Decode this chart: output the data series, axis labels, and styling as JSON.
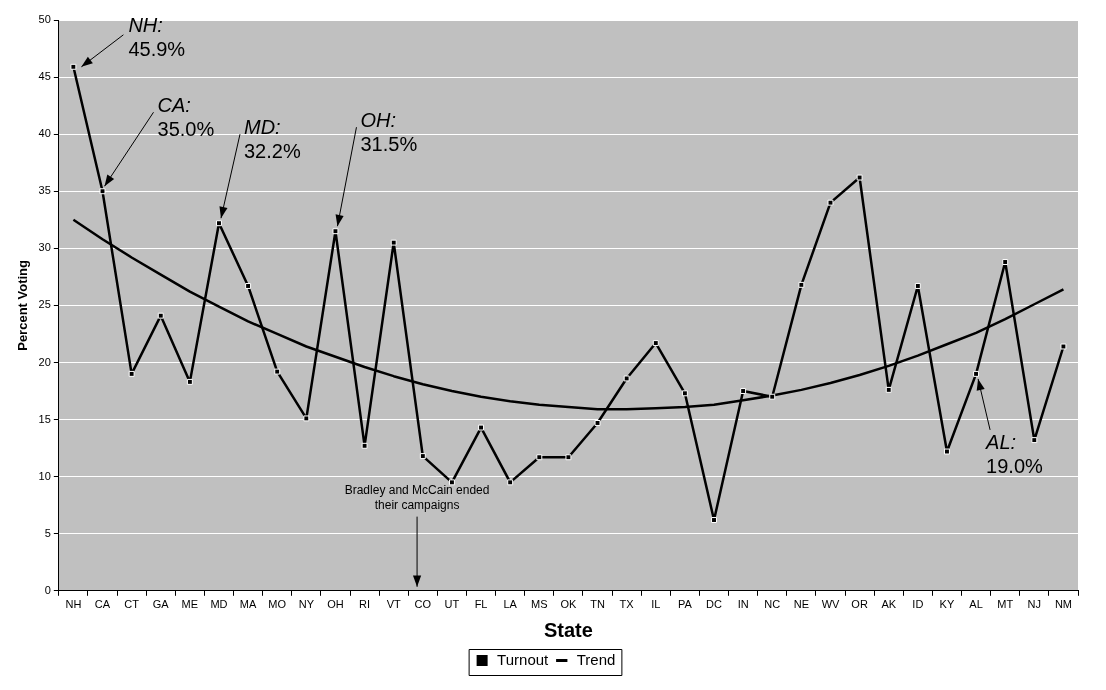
{
  "chart_data": {
    "type": "line",
    "xlabel": "State",
    "ylabel": "Percent Voting",
    "categories": [
      "NH",
      "CA",
      "CT",
      "GA",
      "ME",
      "MD",
      "MA",
      "MO",
      "NY",
      "OH",
      "RI",
      "VT",
      "CO",
      "UT",
      "FL",
      "LA",
      "MS",
      "OK",
      "TN",
      "TX",
      "IL",
      "PA",
      "DC",
      "IN",
      "NC",
      "NE",
      "WV",
      "OR",
      "AK",
      "ID",
      "KY",
      "AL",
      "MT",
      "NJ",
      "NM"
    ],
    "series": [
      {
        "name": "Turnout",
        "color": "#000000",
        "marker": "square",
        "values": [
          45.9,
          35.0,
          19.0,
          24.1,
          18.3,
          32.2,
          26.7,
          19.2,
          15.1,
          31.5,
          12.7,
          30.5,
          11.8,
          9.5,
          14.3,
          9.5,
          11.7,
          11.7,
          14.7,
          18.6,
          21.7,
          17.3,
          6.2,
          17.5,
          17.0,
          26.8,
          34.0,
          36.2,
          17.6,
          26.7,
          12.2,
          19.0,
          28.8,
          13.2,
          21.4
        ]
      },
      {
        "name": "Trend",
        "color": "#000000",
        "marker": "none",
        "values": [
          32.5,
          30.8,
          29.2,
          27.7,
          26.2,
          24.9,
          23.6,
          22.5,
          21.4,
          20.5,
          19.6,
          18.8,
          18.1,
          17.5,
          17.0,
          16.6,
          16.3,
          16.1,
          15.9,
          15.9,
          16.0,
          16.1,
          16.3,
          16.7,
          17.1,
          17.6,
          18.2,
          18.9,
          19.7,
          20.6,
          21.6,
          22.6,
          23.8,
          25.1,
          26.4
        ]
      }
    ],
    "ylim": [
      0,
      50
    ],
    "yticks": [
      0,
      5,
      10,
      15,
      20,
      25,
      30,
      35,
      40,
      45,
      50
    ],
    "grid": "y",
    "legend": "bottom",
    "line_style": "solid",
    "annotations": [
      {
        "text": "NH: 45.9%",
        "x": "NH",
        "y": 45.9
      },
      {
        "text": "CA: 35.0%",
        "x": "CA",
        "y": 35.0
      },
      {
        "text": "MD: 32.2%",
        "x": "MD",
        "y": 32.2
      },
      {
        "text": "OH: 31.5%",
        "x": "OH",
        "y": 31.5
      },
      "Bradley and McCain ended their campaigns",
      {
        "text": "AL: 19.0%",
        "x": "AL",
        "y": 19.0
      }
    ]
  }
}
